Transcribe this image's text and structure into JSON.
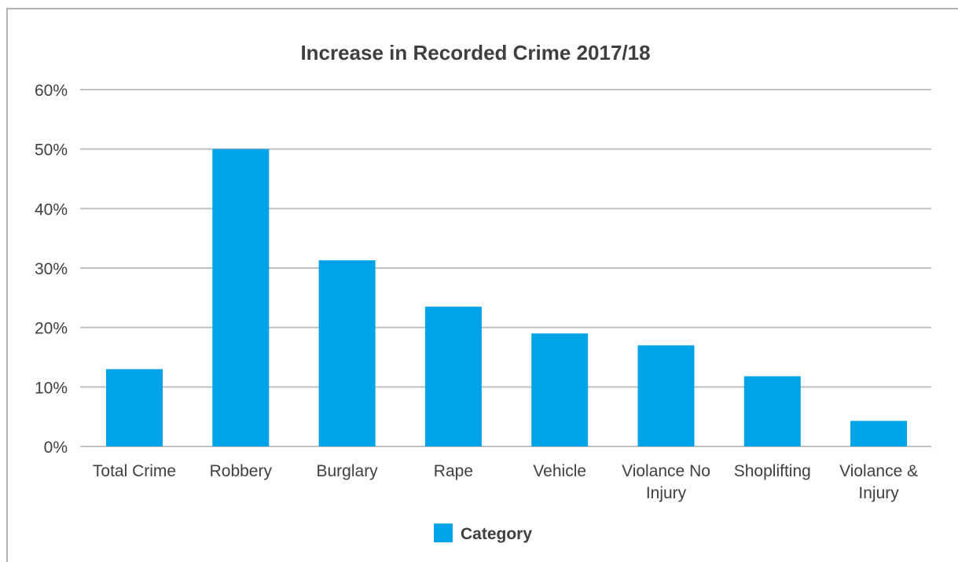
{
  "chart_data": {
    "type": "bar",
    "title": "Increase in Recorded Crime 2017/18",
    "xlabel": "",
    "ylabel": "",
    "categories": [
      "Total Crime",
      "Robbery",
      "Burglary",
      "Rape",
      "Vehicle",
      "Violance No Injury",
      "Shoplifting",
      "Violance & Injury"
    ],
    "category_lines": [
      [
        "Total Crime"
      ],
      [
        "Robbery"
      ],
      [
        "Burglary"
      ],
      [
        "Rape"
      ],
      [
        "Vehicle"
      ],
      [
        "Violance No",
        "Injury"
      ],
      [
        "Shoplifting"
      ],
      [
        "Violance &",
        "Injury"
      ]
    ],
    "series": [
      {
        "name": "Category",
        "values": [
          13,
          50,
          31.3,
          23.5,
          19,
          17,
          11.8,
          4.3
        ],
        "color": "#00a2e8"
      }
    ],
    "ylim": [
      0,
      60
    ],
    "yticks": [
      0,
      10,
      20,
      30,
      40,
      50,
      60
    ],
    "ytick_labels": [
      "0%",
      "10%",
      "20%",
      "30%",
      "40%",
      "50%",
      "60%"
    ],
    "grid": true,
    "legend_position": "bottom",
    "colors": {
      "bar": "#00a2e8",
      "grid": "#bfbfbf",
      "text": "#3f3f3f",
      "frame": "#b3b3b3"
    }
  }
}
